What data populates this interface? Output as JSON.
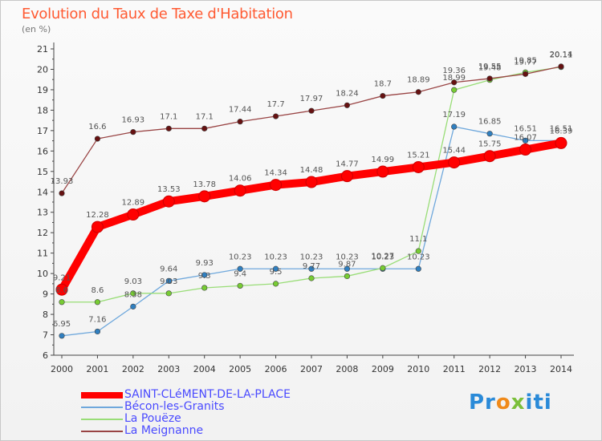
{
  "title": "Evolution du Taux de Taxe d'Habitation",
  "subtitle": "(en %)",
  "logo": {
    "p1": "Pr",
    "p2": "o",
    "p3": "x",
    "p4": "iti"
  },
  "chart_data": {
    "type": "line",
    "title": "Evolution du Taux de Taxe d'Habitation",
    "ylabel": "(en %)",
    "xlabel": "",
    "x": [
      2000,
      2001,
      2002,
      2003,
      2004,
      2005,
      2006,
      2007,
      2008,
      2009,
      2010,
      2011,
      2012,
      2013,
      2014
    ],
    "ylim": [
      6,
      21
    ],
    "yticks": [
      6,
      7,
      8,
      9,
      10,
      11,
      12,
      13,
      14,
      15,
      16,
      17,
      18,
      19,
      20,
      21
    ],
    "grid": false,
    "legend_position": "bottom-left",
    "series": [
      {
        "name": "SAINT-CLéMENT-DE-LA-PLACE",
        "color": "#ff0000",
        "dot_color": "#ff0000",
        "emphasis": true,
        "values": [
          9.21,
          12.28,
          12.89,
          13.53,
          13.78,
          14.06,
          14.34,
          14.48,
          14.77,
          14.99,
          15.21,
          15.44,
          15.75,
          16.07,
          16.39
        ],
        "labels": [
          "9.21",
          "12.28",
          "12.89",
          "13.53",
          "13.78",
          "14.06",
          "14.34",
          "14.48",
          "14.77",
          "14.99",
          "15.21",
          "15.44",
          "15.75",
          "16.07",
          "16.39"
        ]
      },
      {
        "name": "Bécon-les-Granits",
        "color": "#6fa8dc",
        "dot_color": "#2f7fc0",
        "values": [
          6.95,
          7.16,
          8.38,
          9.64,
          9.93,
          10.23,
          10.23,
          10.23,
          10.23,
          10.23,
          10.23,
          17.19,
          16.85,
          16.51,
          16.51
        ],
        "labels": [
          "6.95",
          "7.16",
          "8.38",
          "9.64",
          "9.93",
          "10.23",
          "10.23",
          "10.23",
          "10.23",
          "10.23",
          "10.23",
          "17.19",
          "16.85",
          "16.51",
          "16.51"
        ]
      },
      {
        "name": "La Pouëze",
        "color": "#99dd77",
        "dot_color": "#77cc33",
        "values": [
          8.6,
          8.6,
          9.03,
          9.03,
          9.3,
          9.4,
          9.5,
          9.77,
          9.87,
          10.27,
          11.1,
          18.99,
          19.48,
          19.85,
          20.11
        ],
        "labels": [
          "8.6",
          "8.6",
          "9.03",
          "9.03",
          "9.3",
          "9.4",
          "9.5",
          "9.77",
          "9.87",
          "10.27",
          "11.1",
          "18.99",
          "19.48",
          "19.85",
          "20.11"
        ]
      },
      {
        "name": "La Meignanne",
        "color": "#994444",
        "dot_color": "#661111",
        "values": [
          13.93,
          16.6,
          16.93,
          17.1,
          17.1,
          17.44,
          17.7,
          17.97,
          18.24,
          18.7,
          18.89,
          19.36,
          19.55,
          19.77,
          20.14
        ],
        "labels": [
          "13.93",
          "16.6",
          "16.93",
          "17.1",
          "17.1",
          "17.44",
          "17.7",
          "17.97",
          "18.24",
          "18.7",
          "18.89",
          "19.36",
          "19.55",
          "19.77",
          "20.14"
        ]
      }
    ]
  }
}
